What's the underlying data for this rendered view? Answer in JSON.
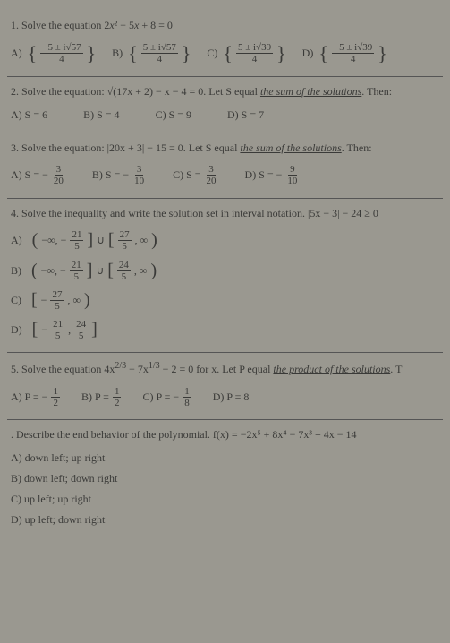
{
  "q1": {
    "text_pre": "1. Solve the equation 2",
    "text_mid": " − 5",
    "text_post": " + 8 = 0",
    "A": {
      "num": "−5 ± i√57",
      "den": "4"
    },
    "B": {
      "num": "5 ± i√57",
      "den": "4"
    },
    "C": {
      "num": "5 ± i√39",
      "den": "4"
    },
    "D": {
      "num": "−5 ± i√39",
      "den": "4"
    }
  },
  "q2": {
    "text": "2. Solve the equation: √(17x + 2) − x − 4 = 0. Let S equal ",
    "und": "the sum of the solutions",
    "text2": ". Then:",
    "A": "A) S = 6",
    "B": "B) S = 4",
    "C": "C) S = 9",
    "D": "D) S = 7"
  },
  "q3": {
    "text": "3. Solve the equation: |20x + 3| − 15 = 0. Let S equal ",
    "und": "the sum of the solutions",
    "text2": ". Then:",
    "A": {
      "lbl": "A) S = −",
      "num": "3",
      "den": "20"
    },
    "B": {
      "lbl": "B) S = −",
      "num": "3",
      "den": "10"
    },
    "C": {
      "lbl": "C) S = ",
      "num": "3",
      "den": "20"
    },
    "D": {
      "lbl": "D) S = −",
      "num": "9",
      "den": "10"
    }
  },
  "q4": {
    "text": "4. Solve the inequality and write the solution set in interval notation. |5x − 3| − 24 ≥ 0",
    "A": {
      "lbl": "A)",
      "l1": "−∞, −",
      "n1": "21",
      "d1": "5",
      "mid": " ∪ ",
      "n2": "27",
      "d2": "5",
      "r": ", ∞"
    },
    "B": {
      "lbl": "B)",
      "l1": "−∞, −",
      "n1": "21",
      "d1": "5",
      "mid": " ∪ ",
      "n2": "24",
      "d2": "5",
      "r": ", ∞"
    },
    "C": {
      "lbl": "C)",
      "n": "27",
      "d": "5",
      "r": ", ∞"
    },
    "D": {
      "lbl": "D)",
      "n1": "21",
      "d1": "5",
      "n2": "24",
      "d2": "5"
    }
  },
  "q5": {
    "text": "5. Solve the equation 4x",
    "e1": "2/3",
    "text2": " − 7x",
    "e2": "1/3",
    "text3": " − 2 = 0 for x. Let P equal ",
    "und": "the product of the solutions",
    "text4": ". T",
    "A": {
      "lbl": "A) P = −",
      "n": "1",
      "d": "2"
    },
    "B": {
      "lbl": "B) P = ",
      "n": "1",
      "d": "2"
    },
    "C": {
      "lbl": "C) P = −",
      "n": "1",
      "d": "8"
    },
    "D": "D) P = 8"
  },
  "q6": {
    "text": ". Describe the end behavior of the polynomial. f(x) = −2x⁵ + 8x⁴ − 7x³ + 4x − 14",
    "A": "A) down left; up right",
    "B": "B) down left; down right",
    "C": "C) up left; up right",
    "D": "D) up left; down right"
  }
}
